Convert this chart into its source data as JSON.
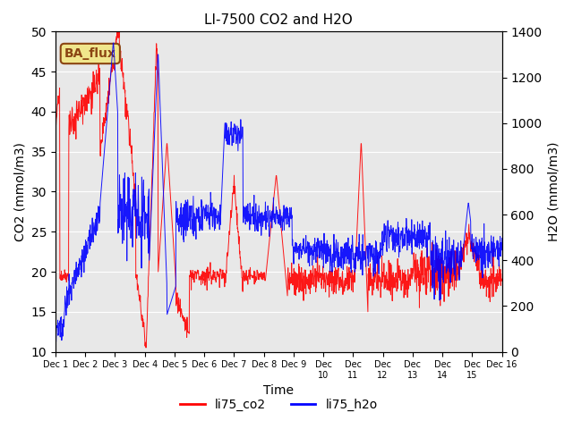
{
  "title": "LI-7500 CO2 and H2O",
  "xlabel": "Time",
  "ylabel_left": "CO2 (mmol/m3)",
  "ylabel_right": "H2O (mmol/m3)",
  "ylim_left": [
    10,
    50
  ],
  "ylim_right": [
    0,
    1400
  ],
  "bg_color": "#e8e8e8",
  "legend_label_co2": "li75_co2",
  "legend_label_h2o": "li75_h2o",
  "co2_color": "red",
  "h2o_color": "blue",
  "annotation_text": "BA_flux",
  "annotation_color": "#8B4513",
  "annotation_bg": "#f0e68c",
  "n_points": 1500
}
